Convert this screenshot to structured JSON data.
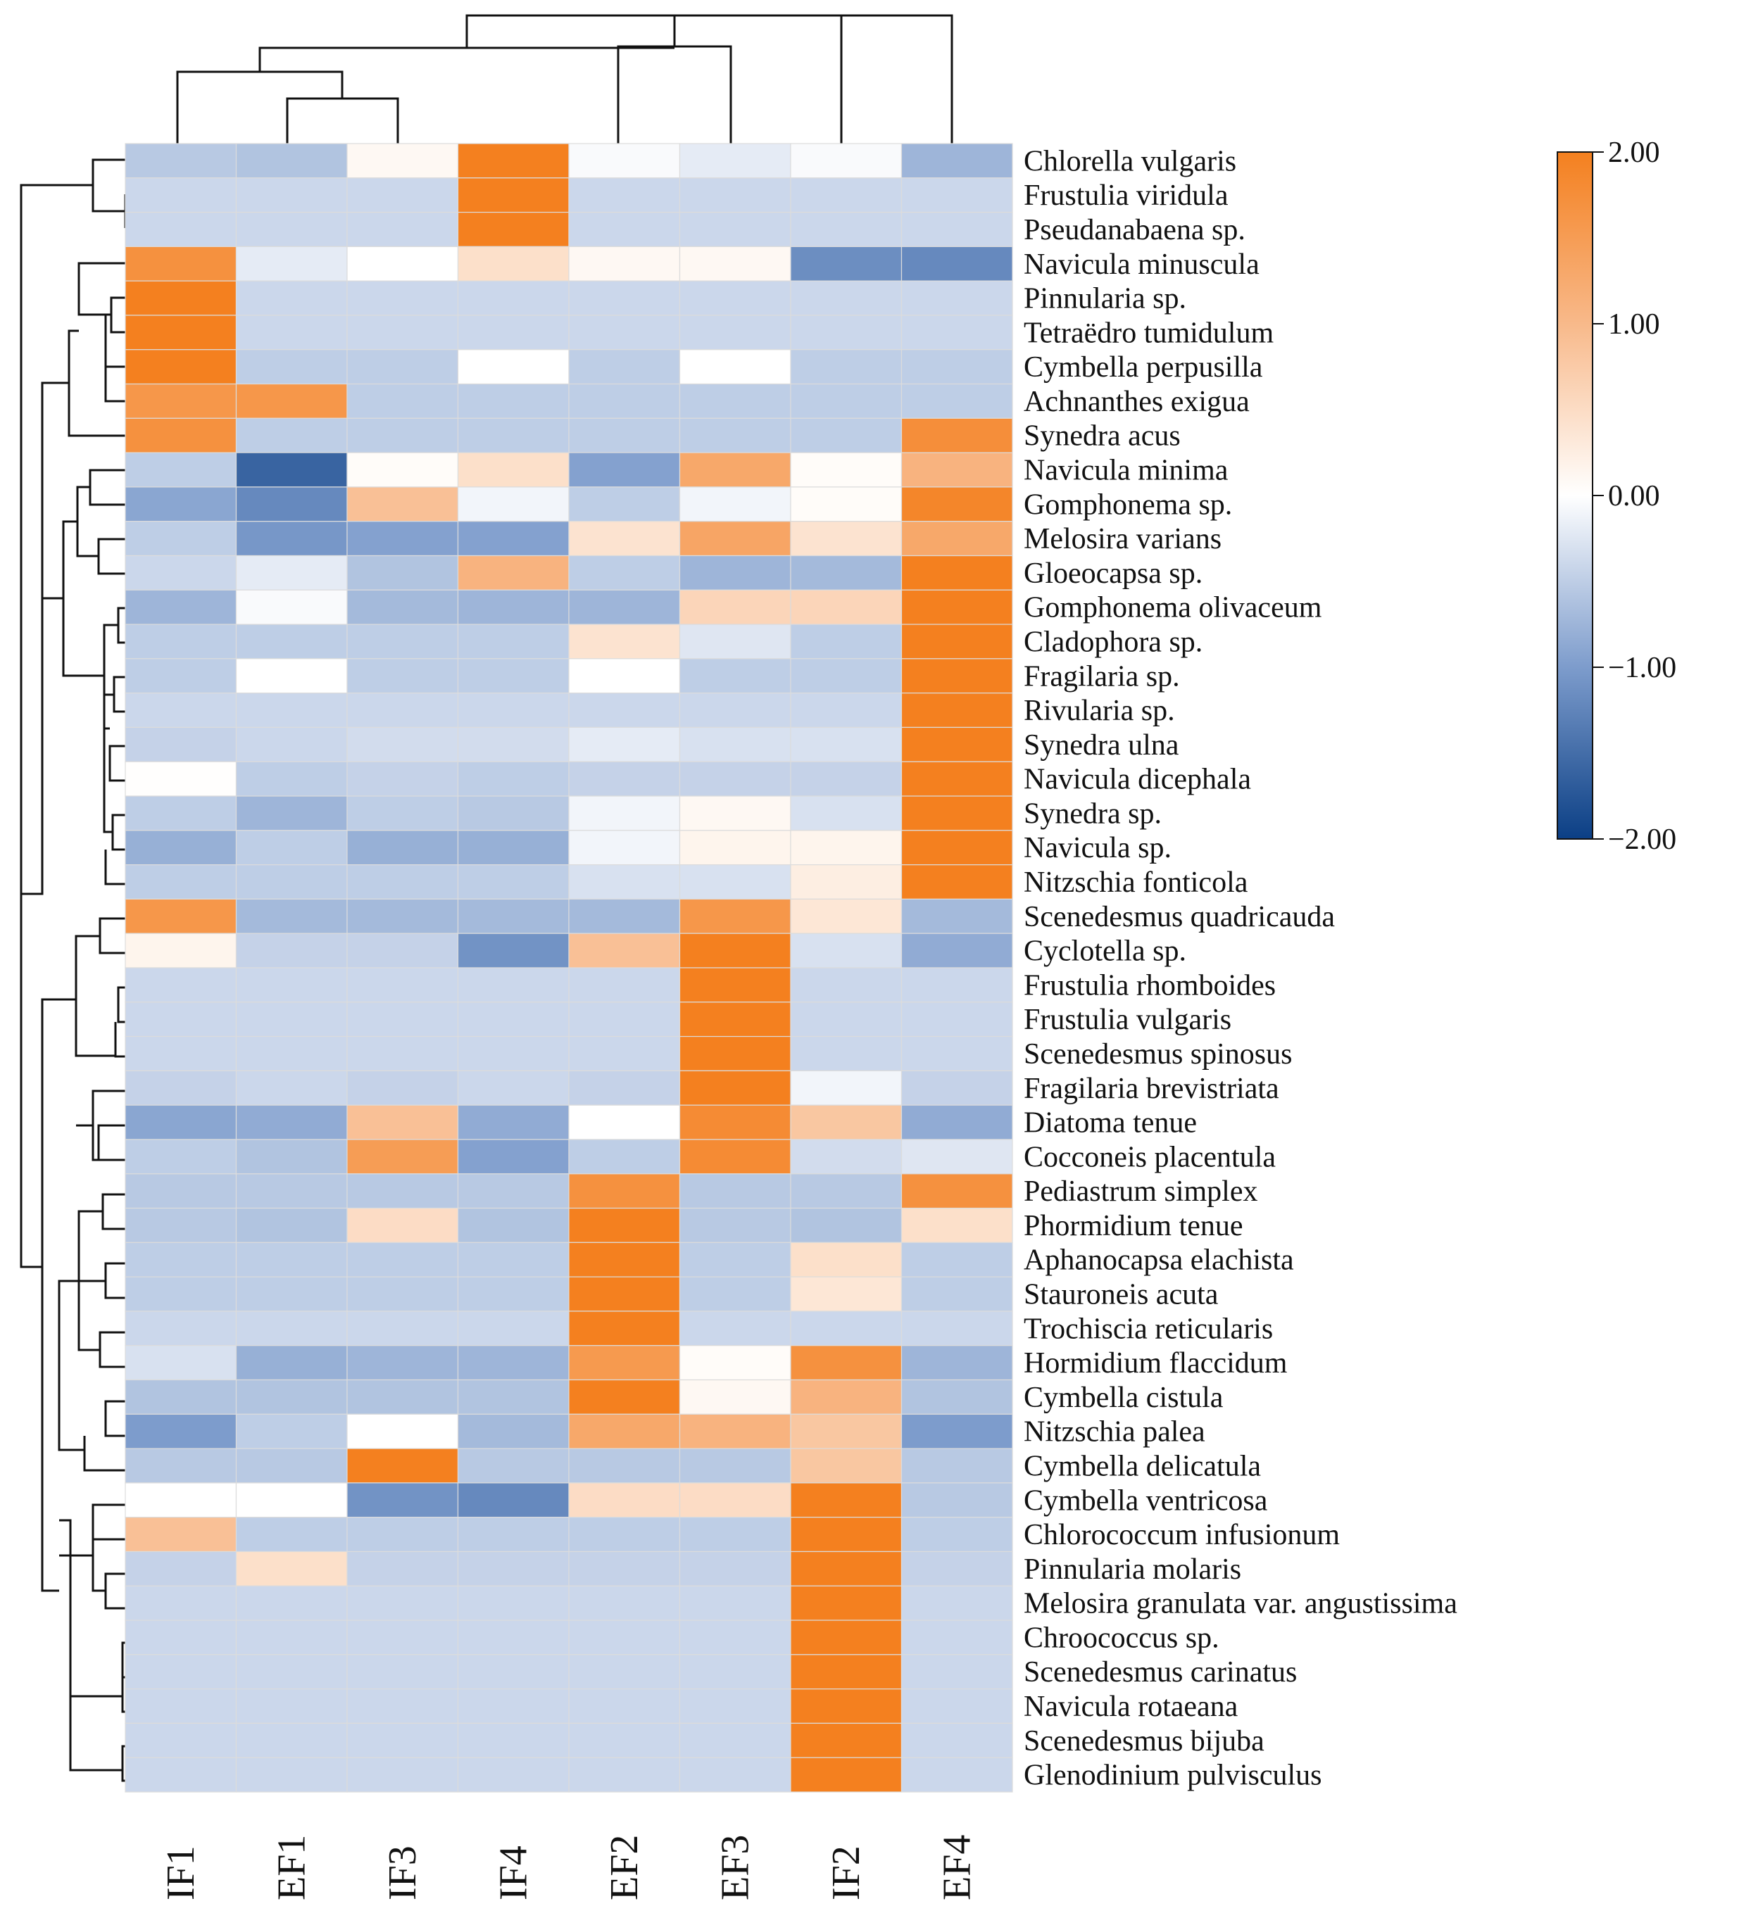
{
  "chart_data": {
    "type": "heatmap",
    "title": "",
    "columns": [
      "IF1",
      "EF1",
      "IF3",
      "IF4",
      "EF2",
      "EF3",
      "IF2",
      "EF4"
    ],
    "rows": [
      "Chlorella vulgaris",
      "Frustulia viridula",
      "Pseudanabaena sp.",
      "Navicula minuscula",
      "Pinnularia sp.",
      "Tetraëdro tumidulum",
      "Cymbella perpusilla",
      "Achnanthes exigua",
      "Synedra acus",
      "Navicula minima",
      "Gomphonema sp.",
      "Melosira varians",
      "Gloeocapsa sp.",
      "Gomphonema olivaceum",
      "Cladophora sp.",
      "Fragilaria sp.",
      "Rivularia sp.",
      "Synedra ulna",
      "Navicula dicephala",
      "Synedra sp.",
      "Navicula sp.",
      "Nitzschia fonticola",
      "Scenedesmus quadricauda",
      "Cyclotella sp.",
      "Frustulia rhomboides",
      "Frustulia vulgaris",
      "Scenedesmus spinosus",
      "Fragilaria brevistriata",
      "Diatoma tenue",
      "Cocconeis placentula",
      "Pediastrum simplex",
      "Phormidium tenue",
      "Aphanocapsa elachista",
      "Stauroneis acuta",
      "Trochiscia reticularis",
      "Hormidium flaccidum",
      "Cymbella cistula",
      "Nitzschia palea",
      "Cymbella delicatula",
      "Cymbella ventricosa",
      "Chlorococcum infusionum",
      "Pinnularia molaris",
      "Melosira granulata var. angustissima",
      "Chroococcus sp.",
      "Scenedesmus carinatus",
      "Navicula rotaeana",
      "Scenedesmus bijuba",
      "Glenodinium pulvisculus"
    ],
    "values": [
      [
        -0.55,
        -0.6,
        0.1,
        2.0,
        -0.05,
        -0.2,
        -0.05,
        -0.75
      ],
      [
        -0.4,
        -0.4,
        -0.4,
        2.0,
        -0.4,
        -0.4,
        -0.4,
        -0.4
      ],
      [
        -0.4,
        -0.4,
        -0.4,
        2.0,
        -0.4,
        -0.4,
        -0.4,
        -0.4
      ],
      [
        1.7,
        -0.2,
        0.0,
        0.45,
        0.1,
        0.1,
        -1.15,
        -1.2
      ],
      [
        2.0,
        -0.4,
        -0.4,
        -0.4,
        -0.4,
        -0.4,
        -0.4,
        -0.4
      ],
      [
        2.0,
        -0.4,
        -0.4,
        -0.4,
        -0.4,
        -0.4,
        -0.4,
        -0.4
      ],
      [
        2.0,
        -0.5,
        -0.5,
        0.0,
        -0.5,
        0.0,
        -0.5,
        -0.5
      ],
      [
        1.6,
        1.6,
        -0.5,
        -0.5,
        -0.5,
        -0.5,
        -0.5,
        -0.5
      ],
      [
        1.7,
        -0.5,
        -0.5,
        -0.5,
        -0.5,
        -0.5,
        -0.5,
        1.75
      ],
      [
        -0.5,
        -1.6,
        0.05,
        0.45,
        -0.95,
        1.3,
        0.05,
        1.1
      ],
      [
        -0.9,
        -1.2,
        0.9,
        -0.1,
        -0.5,
        -0.1,
        0.05,
        1.9
      ],
      [
        -0.5,
        -1.05,
        -0.95,
        -0.95,
        0.4,
        1.35,
        0.4,
        1.3
      ],
      [
        -0.4,
        -0.2,
        -0.6,
        1.1,
        -0.5,
        -0.75,
        -0.7,
        2.0
      ],
      [
        -0.75,
        -0.05,
        -0.7,
        -0.75,
        -0.75,
        0.6,
        0.6,
        2.0
      ],
      [
        -0.5,
        -0.5,
        -0.5,
        -0.5,
        0.4,
        -0.25,
        -0.5,
        2.0
      ],
      [
        -0.5,
        0.0,
        -0.5,
        -0.5,
        0.0,
        -0.5,
        -0.5,
        2.0
      ],
      [
        -0.4,
        -0.4,
        -0.4,
        -0.4,
        -0.4,
        -0.4,
        -0.4,
        2.0
      ],
      [
        -0.45,
        -0.4,
        -0.35,
        -0.35,
        -0.2,
        -0.3,
        -0.3,
        2.0
      ],
      [
        0.02,
        -0.5,
        -0.45,
        -0.5,
        -0.45,
        -0.45,
        -0.45,
        2.0
      ],
      [
        -0.5,
        -0.75,
        -0.5,
        -0.55,
        -0.1,
        0.1,
        -0.3,
        2.0
      ],
      [
        -0.8,
        -0.5,
        -0.8,
        -0.8,
        -0.1,
        0.15,
        0.15,
        2.0
      ],
      [
        -0.5,
        -0.5,
        -0.5,
        -0.5,
        -0.3,
        -0.3,
        0.25,
        2.0
      ],
      [
        1.6,
        -0.7,
        -0.7,
        -0.7,
        -0.7,
        1.6,
        0.35,
        -0.7
      ],
      [
        0.15,
        -0.45,
        -0.45,
        -1.1,
        0.9,
        2.0,
        -0.3,
        -0.85
      ],
      [
        -0.4,
        -0.4,
        -0.4,
        -0.4,
        -0.4,
        2.0,
        -0.4,
        -0.4
      ],
      [
        -0.4,
        -0.4,
        -0.4,
        -0.4,
        -0.4,
        2.0,
        -0.4,
        -0.4
      ],
      [
        -0.4,
        -0.4,
        -0.4,
        -0.4,
        -0.4,
        2.0,
        -0.4,
        -0.4
      ],
      [
        -0.45,
        -0.4,
        -0.45,
        -0.4,
        -0.45,
        2.0,
        -0.1,
        -0.45
      ],
      [
        -0.9,
        -0.85,
        0.9,
        -0.85,
        0.0,
        1.8,
        0.8,
        -0.85
      ],
      [
        -0.5,
        -0.6,
        1.5,
        -0.95,
        -0.5,
        1.8,
        -0.35,
        -0.25
      ],
      [
        -0.55,
        -0.55,
        -0.55,
        -0.55,
        1.7,
        -0.55,
        -0.55,
        1.7
      ],
      [
        -0.55,
        -0.6,
        0.5,
        -0.6,
        2.0,
        -0.55,
        -0.6,
        0.45
      ],
      [
        -0.5,
        -0.5,
        -0.5,
        -0.5,
        2.0,
        -0.5,
        0.45,
        -0.5
      ],
      [
        -0.5,
        -0.5,
        -0.5,
        -0.5,
        2.0,
        -0.5,
        0.35,
        -0.5
      ],
      [
        -0.4,
        -0.4,
        -0.4,
        -0.4,
        2.0,
        -0.4,
        -0.4,
        -0.4
      ],
      [
        -0.3,
        -0.8,
        -0.75,
        -0.75,
        1.55,
        0.05,
        1.7,
        -0.75
      ],
      [
        -0.6,
        -0.6,
        -0.6,
        -0.6,
        2.0,
        0.1,
        1.1,
        -0.6
      ],
      [
        -1.0,
        -0.5,
        0.0,
        -0.7,
        1.3,
        1.1,
        0.8,
        -1.0
      ],
      [
        -0.55,
        -0.55,
        2.0,
        -0.55,
        -0.55,
        -0.55,
        0.8,
        -0.55
      ],
      [
        0.0,
        0.0,
        -1.1,
        -1.2,
        0.5,
        0.5,
        2.0,
        -0.55
      ],
      [
        0.9,
        -0.5,
        -0.5,
        -0.5,
        -0.5,
        -0.5,
        2.0,
        -0.5
      ],
      [
        -0.45,
        0.45,
        -0.45,
        -0.45,
        -0.45,
        -0.45,
        2.0,
        -0.45
      ],
      [
        -0.4,
        -0.4,
        -0.4,
        -0.4,
        -0.4,
        -0.4,
        2.0,
        -0.4
      ],
      [
        -0.4,
        -0.4,
        -0.4,
        -0.4,
        -0.4,
        -0.4,
        2.0,
        -0.4
      ],
      [
        -0.4,
        -0.4,
        -0.4,
        -0.4,
        -0.4,
        -0.4,
        2.0,
        -0.4
      ],
      [
        -0.4,
        -0.4,
        -0.4,
        -0.4,
        -0.4,
        -0.4,
        2.0,
        -0.4
      ],
      [
        -0.4,
        -0.4,
        -0.4,
        -0.4,
        -0.4,
        -0.4,
        2.0,
        -0.4
      ],
      [
        -0.4,
        -0.4,
        -0.4,
        -0.4,
        -0.4,
        -0.4,
        2.0,
        -0.4
      ]
    ],
    "colorbar": {
      "range": [
        -2.0,
        2.0
      ],
      "ticks": [
        2.0,
        1.0,
        0.0,
        -1.0,
        -2.0
      ],
      "tick_labels": [
        "2.00",
        "1.00",
        "0.00",
        "−1.00",
        "−2.00"
      ],
      "colors": {
        "high": "#f4801f",
        "mid": "#ffffff",
        "low": "#0b3f85"
      }
    },
    "row_dendrogram": true,
    "column_dendrogram": true
  }
}
